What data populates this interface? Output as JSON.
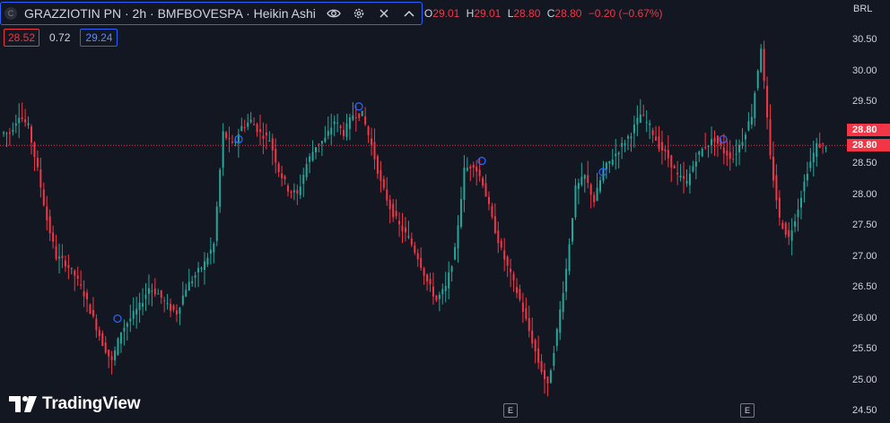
{
  "header": {
    "symbol_icon": "C",
    "title": "GRAZZIOTIN PN · 2h · BMFBOVESPA · Heikin Ashi",
    "icons": [
      "eye-icon",
      "settings-icon",
      "close-icon",
      "chevron-up-icon"
    ],
    "ohlc": {
      "o_label": "O",
      "o_value": "29.01",
      "h_label": "H",
      "h_value": "29.01",
      "l_label": "L",
      "l_value": "28.80",
      "c_label": "C",
      "c_value": "28.80",
      "change": "−0.20 (−0.67%)"
    },
    "bid": "28.52",
    "spread": "0.72",
    "ask": "29.24"
  },
  "price_axis": {
    "currency": "BRL",
    "ticks": [
      "30.50",
      "30.00",
      "29.50",
      "29.00",
      "28.50",
      "28.00",
      "27.50",
      "27.00",
      "26.50",
      "26.00",
      "25.50",
      "25.00",
      "24.50"
    ],
    "last_price_tags": [
      "28.80",
      "28.80"
    ]
  },
  "markers": {
    "earnings_label": "E",
    "earnings_count": 2
  },
  "logo": {
    "text": "TradingView"
  },
  "colors": {
    "background": "#131722",
    "up": "#26a69a",
    "down": "#f23645",
    "accent": "#2962ff"
  },
  "chart_data": {
    "type": "candlestick-heikin-ashi",
    "ylim": [
      24.5,
      30.6
    ],
    "last_price": 28.8,
    "series": [
      {
        "name": "close",
        "values": [
          29.0,
          29.3,
          29.1,
          28.4,
          27.6,
          27.0,
          26.9,
          26.7,
          26.4,
          26.0,
          25.6,
          25.3,
          25.8,
          26.0,
          26.2,
          26.5,
          26.4,
          26.2,
          26.1,
          26.5,
          26.7,
          26.9,
          27.2,
          29.0,
          28.8,
          29.1,
          29.2,
          29.0,
          28.9,
          28.4,
          28.1,
          28.0,
          28.5,
          28.8,
          28.9,
          29.2,
          29.0,
          29.3,
          29.3,
          28.8,
          28.2,
          27.8,
          27.5,
          27.3,
          27.0,
          26.6,
          26.3,
          26.5,
          27.1,
          28.4,
          28.5,
          28.2,
          27.6,
          27.1,
          26.7,
          26.3,
          25.8,
          25.3,
          24.9,
          25.8,
          26.8,
          28.1,
          28.3,
          27.9,
          28.4,
          28.6,
          28.8,
          29.0,
          29.3,
          29.1,
          28.8,
          28.6,
          28.3,
          28.2,
          28.6,
          28.8,
          28.9,
          28.7,
          28.6,
          28.9,
          29.3,
          30.4,
          28.6,
          27.6,
          27.3,
          27.8,
          28.4,
          28.8,
          28.8
        ],
        "x_note": "89 candles across visible window"
      }
    ],
    "low_range": [
      24.9,
      30.5
    ]
  }
}
